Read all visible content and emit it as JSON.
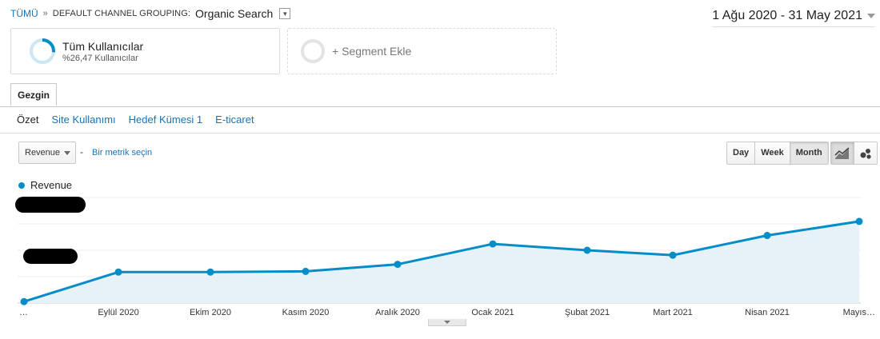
{
  "breadcrumb": {
    "root": "TÜMÜ",
    "separator": "»",
    "dimension": "DEFAULT CHANNEL GROUPING:",
    "value": "Organic Search"
  },
  "date_range": {
    "label": "1 Ağu 2020 - 31 May 2021"
  },
  "segments": {
    "all_users": {
      "title": "Tüm Kullanıcılar",
      "subtitle": "%26,47 Kullanıcılar",
      "ring_fraction": 0.2647
    },
    "add_segment": {
      "label": "+ Segment Ekle"
    }
  },
  "tabs": [
    {
      "label": "Gezgin"
    }
  ],
  "subnav": [
    "Özet",
    "Site Kullanımı",
    "Hedef Kümesi 1",
    "E-ticaret"
  ],
  "metric": {
    "selected": "Revenue",
    "dash": "-",
    "add_link": "Bir metrik seçin"
  },
  "period": {
    "buttons": [
      "Day",
      "Week",
      "Month"
    ],
    "active": "Month"
  },
  "colors": {
    "accent": "#058dc7",
    "link": "#1a73b6",
    "area": "#e6f1f8"
  },
  "chart_data": {
    "type": "area",
    "legend": "Revenue",
    "x": [
      "…",
      "Eylül 2020",
      "Ekim 2020",
      "Kasım 2020",
      "Aralık 2020",
      "Ocak 2021",
      "Şubat 2021",
      "Mart 2021",
      "Nisan 2021",
      "Mayıs…"
    ],
    "series": [
      {
        "name": "Revenue",
        "values": [
          2,
          44,
          44,
          45,
          55,
          84,
          75,
          68,
          96,
          116
        ]
      }
    ],
    "ylim": [
      0,
      150
    ],
    "y_tick_labels_redacted": true,
    "grid": true
  }
}
